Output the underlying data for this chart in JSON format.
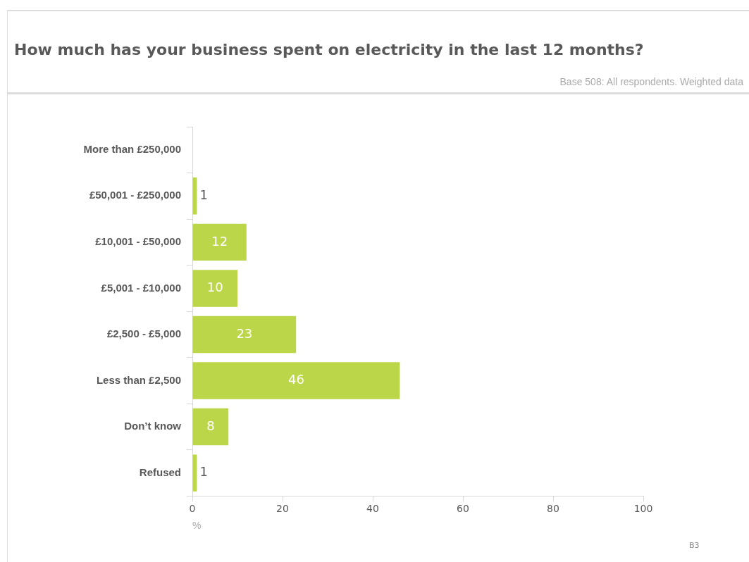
{
  "chart_data": {
    "type": "bar",
    "orientation": "horizontal",
    "title": "How much has your business spent on electricity in the last 12 months?",
    "subtitle": "Base 508: All respondents. Weighted data",
    "xlabel": "%",
    "annotations": [
      "B3"
    ],
    "categories": [
      "More than £250,000",
      "£50,001 - £250,000",
      "£10,001 - £50,000",
      "£5,001 - £10,000",
      "£2,500 - £5,000",
      "Less than £2,500",
      "Don’t know",
      "Refused"
    ],
    "values": [
      0,
      1,
      12,
      10,
      23,
      46,
      8,
      1
    ],
    "value_labels": [
      null,
      "1",
      "12",
      "10",
      "23",
      "46",
      "8",
      "1"
    ],
    "color": "#bcd64a",
    "xlim": [
      0,
      100
    ],
    "xticks": [
      0,
      20,
      40,
      60,
      80,
      100
    ],
    "grid": false,
    "legend": false
  }
}
